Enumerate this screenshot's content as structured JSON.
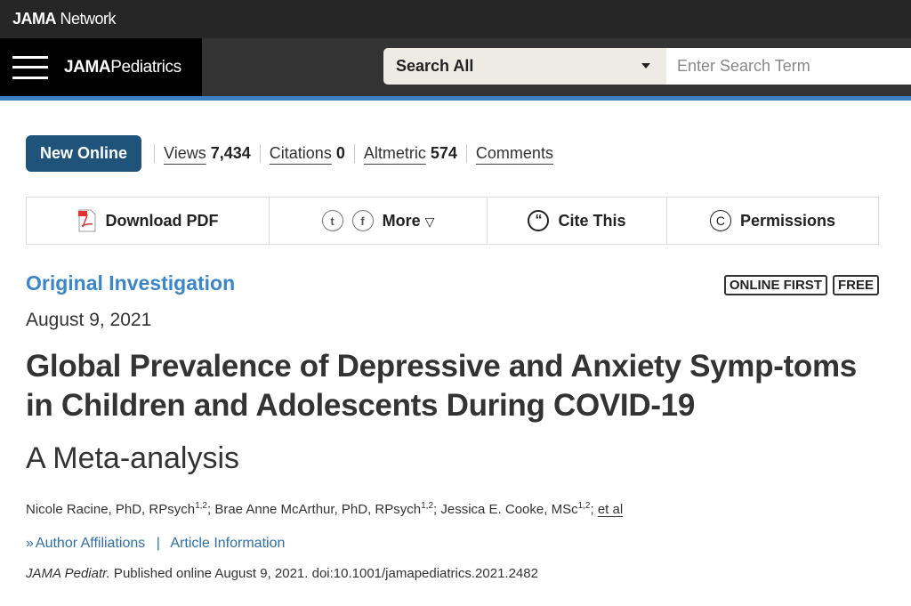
{
  "network": {
    "brand_bold": "JAMA",
    "brand_rest": " Network"
  },
  "nav": {
    "journal_bold": "JAMA",
    "journal_rest": " Pediatrics",
    "search_scope": "Search All",
    "search_placeholder": "Enter Search Term"
  },
  "meta": {
    "badge": "New Online",
    "views_label": "Views",
    "views": "7,434",
    "citations_label": "Citations",
    "citations": "0",
    "altmetric_label": "Altmetric",
    "altmetric": "574",
    "comments": "Comments"
  },
  "tools": {
    "pdf": "Download PDF",
    "more": "More",
    "cite": "Cite This",
    "permissions": "Permissions"
  },
  "article": {
    "type": "Original Investigation",
    "flags": [
      "ONLINE FIRST",
      "FREE"
    ],
    "date": "August 9, 2021",
    "title": "Global Prevalence of Depressive and Anxiety Symp-toms in Children and Adolescents During COVID-19",
    "subtitle": "A Meta-analysis",
    "authors": [
      {
        "name": "Nicole Racine, PhD, RPsych",
        "sup": "1,2"
      },
      {
        "name": "Brae Anne McArthur, PhD, RPsych",
        "sup": "1,2"
      },
      {
        "name": "Jessica E. Cooke, MSc",
        "sup": "1,2"
      }
    ],
    "et_al": "et al",
    "affiliations": "Author Affiliations",
    "sep": "|",
    "info": "Article Information",
    "journal_abbr": "JAMA Pediatr.",
    "citation": " Published online August 9, 2021. doi:10.1001/jamapediatrics.2021.2482"
  },
  "colors": {
    "accent": "#3a86c8",
    "badge": "#1f5379",
    "topbar": "#262626"
  }
}
